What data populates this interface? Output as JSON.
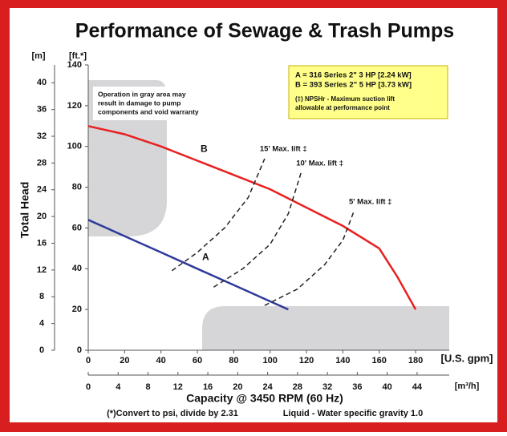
{
  "chart_data": {
    "type": "line",
    "title": "Performance of Sewage & Trash Pumps",
    "y_unit": "[m]",
    "y2_unit": "[ft.*]",
    "x_unit": "[U.S. gpm]",
    "x2_unit": "[m³/h]",
    "ylabel": "Total Head",
    "xlabel": "Capacity @ 3450 RPM (60 Hz)",
    "footnotes": [
      "(*)Convert to psi, divide by 2.31",
      "Liquid - Water specific gravity 1.0"
    ],
    "legend_lines": [
      "A = 316 Series 2\" 3 HP [2.24 kW]",
      "B = 393 Series 2\" 5 HP [3.73 kW]"
    ],
    "legend_notes": [
      "(‡) NPSHr - Maximum suction lift",
      "allowable at performance point"
    ],
    "warning": [
      "Operation in gray area may",
      "result in damage to pump",
      "components and void warranty"
    ],
    "xlim": [
      0,
      198.5
    ],
    "xticks": [
      0,
      20,
      40,
      60,
      80,
      100,
      120,
      140,
      160,
      180
    ],
    "x2lim": [
      0,
      48.3
    ],
    "x2ticks": [
      0,
      4,
      8,
      12,
      16,
      20,
      24,
      28,
      32,
      36,
      40,
      44
    ],
    "ylim": [
      0,
      140
    ],
    "yticks": [
      0,
      20,
      40,
      60,
      80,
      100,
      120,
      140
    ],
    "y2lim": [
      0,
      42.67
    ],
    "y2ticks": [
      0,
      4,
      8,
      12,
      16,
      20,
      24,
      28,
      32,
      36,
      40
    ],
    "series": [
      {
        "name": "A",
        "color": "#2e3a9a",
        "x": [
          0,
          20,
          40,
          60,
          80,
          100,
          110
        ],
        "values": [
          64,
          56,
          48,
          40,
          32,
          24,
          20
        ]
      },
      {
        "name": "B",
        "color": "#e82020",
        "x": [
          0,
          20,
          40,
          60,
          80,
          100,
          120,
          140,
          160,
          170,
          180
        ],
        "values": [
          110,
          106,
          100,
          93,
          86,
          79,
          70,
          61,
          50,
          36,
          20
        ]
      }
    ],
    "lift_lines": [
      {
        "name": "15' Max. lift ‡",
        "x": [
          46,
          60,
          75,
          88,
          97
        ],
        "values": [
          39,
          48,
          60,
          75,
          94
        ]
      },
      {
        "name": "10' Max. lift ‡",
        "x": [
          69,
          85,
          100,
          110,
          117
        ],
        "values": [
          31,
          40,
          52,
          67,
          87
        ]
      },
      {
        "name": "5' Max. lift ‡",
        "x": [
          97,
          115,
          130,
          140,
          146
        ],
        "values": [
          22,
          30,
          42,
          54,
          68
        ]
      }
    ]
  }
}
